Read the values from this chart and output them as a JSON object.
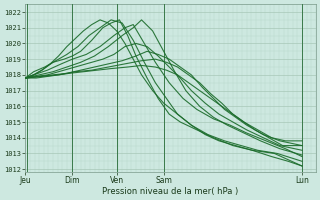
{
  "background_color": "#cde8e0",
  "grid_color_major": "#a8c8b8",
  "grid_color_minor": "#b8d8c8",
  "line_color": "#1a6b2a",
  "vline_color": "#3a7a4a",
  "ylabel_values": [
    1012,
    1013,
    1014,
    1015,
    1016,
    1017,
    1018,
    1019,
    1020,
    1021,
    1022
  ],
  "ylim": [
    1011.8,
    1022.5
  ],
  "xlabel": "Pression niveau de la mer( hPa )",
  "xtick_labels": [
    "Jeu",
    "Dim",
    "Ven",
    "Sam",
    "Lun"
  ],
  "xtick_positions": [
    0.0,
    16.7,
    33.3,
    50.0,
    100.0
  ],
  "xlim": [
    0,
    105
  ],
  "vline_positions": [
    0.5,
    16.7,
    33.3,
    50.0,
    100.0
  ],
  "lines": [
    [
      [
        0,
        1017.8
      ],
      [
        3,
        1018.0
      ],
      [
        6,
        1018.3
      ],
      [
        10,
        1018.8
      ],
      [
        14,
        1019.0
      ],
      [
        17,
        1019.2
      ],
      [
        20,
        1019.5
      ],
      [
        24,
        1020.2
      ],
      [
        28,
        1021.0
      ],
      [
        31,
        1021.3
      ],
      [
        34,
        1021.5
      ],
      [
        37,
        1020.5
      ],
      [
        40,
        1019.2
      ],
      [
        44,
        1017.8
      ],
      [
        48,
        1016.5
      ],
      [
        52,
        1015.5
      ],
      [
        56,
        1015.0
      ],
      [
        62,
        1014.5
      ],
      [
        68,
        1014.0
      ],
      [
        75,
        1013.5
      ],
      [
        82,
        1013.2
      ],
      [
        90,
        1013.0
      ],
      [
        100,
        1012.2
      ]
    ],
    [
      [
        0,
        1017.8
      ],
      [
        3,
        1018.0
      ],
      [
        8,
        1018.3
      ],
      [
        13,
        1018.7
      ],
      [
        17,
        1019.0
      ],
      [
        22,
        1019.3
      ],
      [
        27,
        1019.8
      ],
      [
        32,
        1020.5
      ],
      [
        36,
        1021.0
      ],
      [
        39,
        1021.2
      ],
      [
        43,
        1020.0
      ],
      [
        47,
        1018.8
      ],
      [
        52,
        1017.5
      ],
      [
        57,
        1016.5
      ],
      [
        62,
        1015.8
      ],
      [
        68,
        1015.2
      ],
      [
        74,
        1014.8
      ],
      [
        80,
        1014.3
      ],
      [
        87,
        1013.8
      ],
      [
        94,
        1013.3
      ],
      [
        100,
        1012.8
      ]
    ],
    [
      [
        0,
        1017.8
      ],
      [
        5,
        1018.0
      ],
      [
        10,
        1018.2
      ],
      [
        15,
        1018.5
      ],
      [
        20,
        1018.8
      ],
      [
        25,
        1019.2
      ],
      [
        30,
        1019.8
      ],
      [
        35,
        1020.5
      ],
      [
        39,
        1021.0
      ],
      [
        42,
        1021.5
      ],
      [
        46,
        1020.8
      ],
      [
        50,
        1019.5
      ],
      [
        54,
        1018.2
      ],
      [
        58,
        1017.0
      ],
      [
        63,
        1016.0
      ],
      [
        68,
        1015.3
      ],
      [
        73,
        1014.8
      ],
      [
        79,
        1014.3
      ],
      [
        85,
        1013.8
      ],
      [
        92,
        1013.3
      ],
      [
        100,
        1012.9
      ]
    ],
    [
      [
        0,
        1017.8
      ],
      [
        4,
        1017.9
      ],
      [
        8,
        1018.0
      ],
      [
        12,
        1018.2
      ],
      [
        16,
        1018.4
      ],
      [
        20,
        1018.6
      ],
      [
        24,
        1018.8
      ],
      [
        28,
        1019.0
      ],
      [
        32,
        1019.3
      ],
      [
        36,
        1019.8
      ],
      [
        40,
        1020.0
      ],
      [
        44,
        1019.8
      ],
      [
        48,
        1019.2
      ],
      [
        52,
        1018.5
      ],
      [
        56,
        1017.8
      ],
      [
        60,
        1017.0
      ],
      [
        65,
        1016.2
      ],
      [
        70,
        1015.5
      ],
      [
        75,
        1015.0
      ],
      [
        80,
        1014.5
      ],
      [
        86,
        1014.0
      ],
      [
        92,
        1013.5
      ],
      [
        100,
        1013.2
      ]
    ],
    [
      [
        0,
        1017.8
      ],
      [
        5,
        1017.9
      ],
      [
        10,
        1018.0
      ],
      [
        15,
        1018.1
      ],
      [
        20,
        1018.3
      ],
      [
        25,
        1018.5
      ],
      [
        30,
        1018.7
      ],
      [
        35,
        1018.9
      ],
      [
        40,
        1019.2
      ],
      [
        44,
        1019.5
      ],
      [
        48,
        1019.3
      ],
      [
        52,
        1019.0
      ],
      [
        56,
        1018.5
      ],
      [
        60,
        1018.0
      ],
      [
        64,
        1017.2
      ],
      [
        68,
        1016.5
      ],
      [
        72,
        1015.8
      ],
      [
        76,
        1015.3
      ],
      [
        80,
        1014.8
      ],
      [
        86,
        1014.2
      ],
      [
        92,
        1013.8
      ],
      [
        100,
        1013.5
      ]
    ],
    [
      [
        0,
        1017.8
      ],
      [
        6,
        1017.9
      ],
      [
        12,
        1018.0
      ],
      [
        18,
        1018.2
      ],
      [
        24,
        1018.3
      ],
      [
        30,
        1018.5
      ],
      [
        36,
        1018.7
      ],
      [
        42,
        1018.9
      ],
      [
        47,
        1019.0
      ],
      [
        51,
        1018.8
      ],
      [
        55,
        1018.5
      ],
      [
        59,
        1018.0
      ],
      [
        63,
        1017.5
      ],
      [
        67,
        1016.8
      ],
      [
        71,
        1016.2
      ],
      [
        75,
        1015.5
      ],
      [
        79,
        1015.0
      ],
      [
        83,
        1014.5
      ],
      [
        88,
        1014.0
      ],
      [
        93,
        1013.5
      ],
      [
        100,
        1013.5
      ]
    ],
    [
      [
        0,
        1017.8
      ],
      [
        4,
        1017.8
      ],
      [
        8,
        1017.9
      ],
      [
        12,
        1018.0
      ],
      [
        16,
        1018.1
      ],
      [
        21,
        1018.2
      ],
      [
        26,
        1018.3
      ],
      [
        31,
        1018.4
      ],
      [
        37,
        1018.5
      ],
      [
        42,
        1018.6
      ],
      [
        47,
        1018.5
      ],
      [
        51,
        1018.3
      ],
      [
        55,
        1018.0
      ],
      [
        59,
        1017.5
      ],
      [
        63,
        1017.0
      ],
      [
        67,
        1016.5
      ],
      [
        71,
        1016.0
      ],
      [
        75,
        1015.5
      ],
      [
        79,
        1015.0
      ],
      [
        84,
        1014.5
      ],
      [
        89,
        1014.0
      ],
      [
        94,
        1013.8
      ],
      [
        100,
        1013.8
      ]
    ],
    [
      [
        0,
        1017.8
      ],
      [
        3,
        1018.2
      ],
      [
        7,
        1018.5
      ],
      [
        11,
        1018.9
      ],
      [
        15,
        1019.3
      ],
      [
        19,
        1019.8
      ],
      [
        23,
        1020.5
      ],
      [
        27,
        1021.0
      ],
      [
        31,
        1021.5
      ],
      [
        35,
        1021.3
      ],
      [
        39,
        1020.2
      ],
      [
        43,
        1018.8
      ],
      [
        47,
        1017.5
      ],
      [
        51,
        1016.5
      ],
      [
        55,
        1015.5
      ],
      [
        60,
        1014.8
      ],
      [
        65,
        1014.2
      ],
      [
        70,
        1013.8
      ],
      [
        76,
        1013.5
      ],
      [
        82,
        1013.2
      ],
      [
        89,
        1012.8
      ],
      [
        95,
        1012.5
      ],
      [
        100,
        1012.2
      ]
    ],
    [
      [
        0,
        1017.8
      ],
      [
        3,
        1018.0
      ],
      [
        6,
        1018.3
      ],
      [
        9,
        1018.7
      ],
      [
        12,
        1019.2
      ],
      [
        15,
        1019.8
      ],
      [
        18,
        1020.3
      ],
      [
        21,
        1020.8
      ],
      [
        24,
        1021.2
      ],
      [
        27,
        1021.5
      ],
      [
        30,
        1021.3
      ],
      [
        33,
        1020.8
      ],
      [
        36,
        1020.0
      ],
      [
        39,
        1019.0
      ],
      [
        42,
        1018.0
      ],
      [
        46,
        1017.0
      ],
      [
        50,
        1016.2
      ],
      [
        55,
        1015.5
      ],
      [
        60,
        1014.8
      ],
      [
        66,
        1014.2
      ],
      [
        72,
        1013.8
      ],
      [
        78,
        1013.5
      ],
      [
        84,
        1013.2
      ],
      [
        91,
        1013.0
      ],
      [
        100,
        1012.5
      ]
    ]
  ]
}
